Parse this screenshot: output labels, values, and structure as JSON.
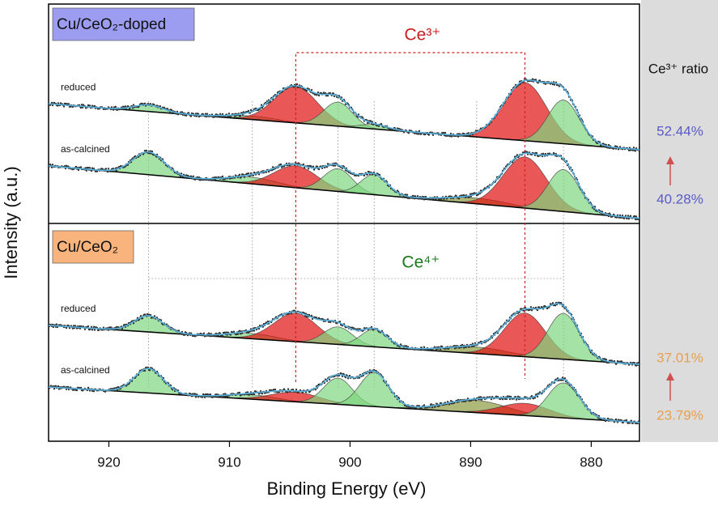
{
  "chart_data": {
    "type": "xps",
    "x_label": "Binding Energy (eV)",
    "y_label": "Intensity (a.u.)",
    "xlim": [
      925,
      876
    ],
    "xticks": [
      920,
      910,
      900,
      890,
      880
    ],
    "ylim": [
      0,
      100
    ],
    "panels": [
      {
        "label": "Cu/CeO₂-doped",
        "color": "#9c9cf0"
      },
      {
        "label": "Cu/CeO₂",
        "color": "#f8b47c"
      }
    ],
    "spectra": [
      {
        "name": "reduced",
        "baseline": [
          77.2,
          66.7
        ],
        "peaks": [
          {
            "center": 916.7,
            "height": 1.5,
            "width": 1.2,
            "color": "#7fd67f"
          },
          {
            "center": 908.1,
            "height": 0.8,
            "width": 2.0,
            "color": "#7fd67f"
          },
          {
            "center": 904.5,
            "height": 8.3,
            "width": 1.8,
            "color": "#e01010"
          },
          {
            "center": 901.0,
            "height": 5.5,
            "width": 1.2,
            "color": "#7fd67f"
          },
          {
            "center": 898.0,
            "height": 1.0,
            "width": 1.2,
            "color": "#7fd67f"
          },
          {
            "center": 885.5,
            "height": 13.3,
            "width": 1.8,
            "color": "#e01010"
          },
          {
            "center": 882.3,
            "height": 10.0,
            "width": 1.3,
            "color": "#7fd67f"
          }
        ]
      },
      {
        "name": "as-calcined",
        "baseline": [
          63.0,
          51.0
        ],
        "peaks": [
          {
            "center": 916.7,
            "height": 5.2,
            "width": 1.3,
            "color": "#7fd67f"
          },
          {
            "center": 908.1,
            "height": 1.5,
            "width": 2.0,
            "color": "#7fd67f"
          },
          {
            "center": 904.5,
            "height": 5.0,
            "width": 1.8,
            "color": "#e01010"
          },
          {
            "center": 901.0,
            "height": 5.2,
            "width": 1.2,
            "color": "#7fd67f"
          },
          {
            "center": 898.0,
            "height": 4.6,
            "width": 1.1,
            "color": "#7fd67f"
          },
          {
            "center": 889.5,
            "height": 1.3,
            "width": 2.5,
            "color": "#8a9a40"
          },
          {
            "center": 885.5,
            "height": 11.7,
            "width": 1.8,
            "color": "#e01010"
          },
          {
            "center": 882.3,
            "height": 9.6,
            "width": 1.3,
            "color": "#7fd67f"
          }
        ]
      },
      {
        "name": "reduced",
        "baseline": [
          26.5,
          17.6
        ],
        "peaks": [
          {
            "center": 916.7,
            "height": 3.7,
            "width": 1.2,
            "color": "#7fd67f"
          },
          {
            "center": 908.1,
            "height": 1.2,
            "width": 2.0,
            "color": "#7fd67f"
          },
          {
            "center": 904.5,
            "height": 6.5,
            "width": 1.8,
            "color": "#e01010"
          },
          {
            "center": 901.0,
            "height": 4.0,
            "width": 1.2,
            "color": "#7fd67f"
          },
          {
            "center": 898.0,
            "height": 4.0,
            "width": 1.1,
            "color": "#7fd67f"
          },
          {
            "center": 889.5,
            "height": 1.5,
            "width": 2.5,
            "color": "#8a9a40"
          },
          {
            "center": 885.5,
            "height": 10.0,
            "width": 1.7,
            "color": "#e01010"
          },
          {
            "center": 882.3,
            "height": 10.5,
            "width": 1.3,
            "color": "#7fd67f"
          }
        ]
      },
      {
        "name": "as-calcined",
        "baseline": [
          12.4,
          4.3
        ],
        "peaks": [
          {
            "center": 916.7,
            "height": 5.6,
            "width": 1.2,
            "color": "#7fd67f"
          },
          {
            "center": 908.1,
            "height": 1.0,
            "width": 2.0,
            "color": "#7fd67f"
          },
          {
            "center": 904.5,
            "height": 2.2,
            "width": 2.0,
            "color": "#e01010"
          },
          {
            "center": 901.0,
            "height": 6.0,
            "width": 1.2,
            "color": "#7fd67f"
          },
          {
            "center": 898.0,
            "height": 7.8,
            "width": 1.2,
            "color": "#7fd67f"
          },
          {
            "center": 889.5,
            "height": 2.8,
            "width": 2.5,
            "color": "#8a9a40"
          },
          {
            "center": 885.5,
            "height": 2.8,
            "width": 2.0,
            "color": "#e01010"
          },
          {
            "center": 882.3,
            "height": 8.0,
            "width": 1.3,
            "color": "#7fd67f"
          }
        ]
      }
    ],
    "guide_lines": [
      916.7,
      908.1,
      901.0,
      898.0,
      889.5,
      882.3
    ],
    "ce3_label": "Ce³⁺",
    "ce3_box": [
      904.5,
      885.5
    ],
    "ce4_label": "Ce⁴⁺",
    "ce4_bracket": [
      916.7,
      882.3
    ],
    "ratio_title": "Ce³⁺ ratio",
    "ratios": [
      {
        "value": 52.44,
        "label": "52.44%",
        "color": "#5a5ac8"
      },
      {
        "value": 40.28,
        "label": "40.28%",
        "color": "#5a5ac8"
      },
      {
        "value": 37.01,
        "label": "37.01%",
        "color": "#e8a04c"
      },
      {
        "value": 23.79,
        "label": "23.79%",
        "color": "#e8a04c"
      }
    ]
  }
}
